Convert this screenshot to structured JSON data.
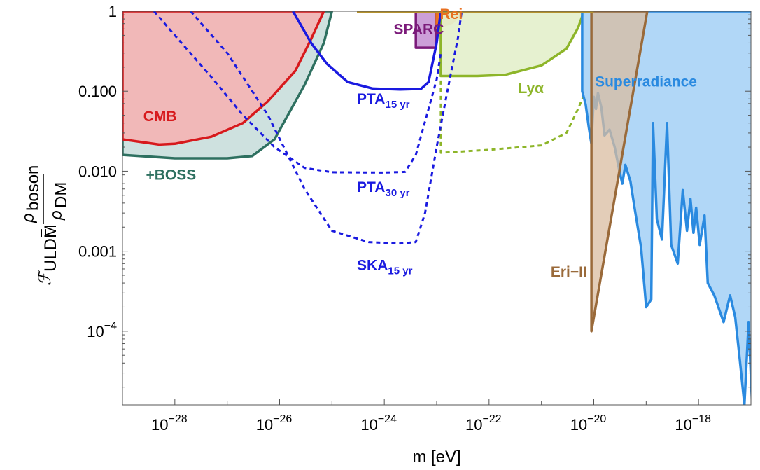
{
  "chart_data": {
    "type": "area",
    "xlabel": "m [eV]",
    "ylabel": {
      "prefix": "ℱ",
      "prefix_sub": "ULDM",
      "equals": "=",
      "num": "ρ",
      "num_sub": "boson",
      "den": "ρ",
      "den_sub": "DM"
    },
    "x_scale": "log",
    "y_scale": "log",
    "xlim": [
      1e-29,
      1e-17
    ],
    "ylim": [
      1.2e-05,
      1
    ],
    "x_ticks": [
      {
        "base": "10",
        "exp": "−28",
        "value": 1e-28
      },
      {
        "base": "10",
        "exp": "−26",
        "value": 1e-26
      },
      {
        "base": "10",
        "exp": "−24",
        "value": 1e-24
      },
      {
        "base": "10",
        "exp": "−22",
        "value": 1e-22
      },
      {
        "base": "10",
        "exp": "−20",
        "value": 1e-20
      },
      {
        "base": "10",
        "exp": "−18",
        "value": 1e-18
      }
    ],
    "y_ticks": [
      {
        "text": "1",
        "value": 1
      },
      {
        "text": "0.100",
        "value": 0.1
      },
      {
        "text": "0.010",
        "value": 0.01
      },
      {
        "text": "0.001",
        "value": 0.001
      },
      {
        "base": "10",
        "exp": "−4",
        "value": 0.0001
      }
    ],
    "regions": [
      {
        "name": "+BOSS",
        "color": "#2e7060",
        "fill": "#c9dedb",
        "fill_opacity": 0.9,
        "style": "solid",
        "label": {
          "text": "+BOSS",
          "x": 2.8e-29,
          "y": 0.0078
        },
        "points": [
          [
            1e-29,
            0.016
          ],
          [
            1e-28,
            0.0145
          ],
          [
            1e-27,
            0.0145
          ],
          [
            3e-27,
            0.0155
          ],
          [
            8e-27,
            0.025
          ],
          [
            3e-26,
            0.12
          ],
          [
            7e-26,
            0.4
          ],
          [
            1e-25,
            1
          ],
          [
            1e-29,
            1
          ]
        ]
      },
      {
        "name": "CMB",
        "color": "#d7191c",
        "fill": "#f2b5b5",
        "fill_opacity": 0.95,
        "style": "solid",
        "label": {
          "text": "CMB",
          "x": 2.5e-29,
          "y": 0.042
        },
        "points": [
          [
            1e-29,
            0.025
          ],
          [
            5e-29,
            0.0215
          ],
          [
            1e-28,
            0.022
          ],
          [
            5e-28,
            0.027
          ],
          [
            2e-27,
            0.04
          ],
          [
            6e-27,
            0.075
          ],
          [
            2e-26,
            0.18
          ],
          [
            4e-26,
            0.45
          ],
          [
            7e-26,
            1
          ],
          [
            1e-29,
            1
          ]
        ]
      },
      {
        "name": "SPARC",
        "color": "#7b1a7a",
        "fill": "#c99ad6",
        "fill_opacity": 0.95,
        "style": "solid",
        "label": {
          "text": "SPARC",
          "x": 1.5e-24,
          "y": 0.52
        },
        "points": [
          [
            4e-24,
            0.35
          ],
          [
            9.8e-24,
            0.35
          ],
          [
            9.8e-24,
            1
          ],
          [
            4e-24,
            1
          ]
        ]
      },
      {
        "name": "Rei",
        "color": "#e87020",
        "fill": "#f07a28",
        "fill_opacity": 1,
        "style": "solid",
        "label": {
          "text": "Rei",
          "x": 1.15e-23,
          "y": 0.8
        },
        "points": [
          [
            1e-23,
            0.62
          ],
          [
            2e-23,
            0.72
          ],
          [
            3.2e-23,
            1
          ],
          [
            1e-23,
            1
          ]
        ]
      },
      {
        "name": "Lyα",
        "color": "#8db529",
        "fill": "#e5f0cd",
        "fill_opacity": 0.95,
        "style": "solid",
        "label": {
          "text": "Lyα",
          "x": 3.6e-22,
          "y": 0.095
        },
        "points": [
          [
            1.2e-23,
            0.155
          ],
          [
            6e-23,
            0.155
          ],
          [
            2e-22,
            0.16
          ],
          [
            1e-21,
            0.21
          ],
          [
            3e-21,
            0.34
          ],
          [
            5e-21,
            0.62
          ],
          [
            6.5e-21,
            1
          ],
          [
            1.2e-23,
            1
          ]
        ]
      },
      {
        "name": "Lyα projection",
        "color": "#8db529",
        "style": "dashed",
        "points": [
          [
            1.2e-23,
            0.17
          ],
          [
            1.2e-23,
            0.017
          ],
          [
            1e-22,
            0.0185
          ],
          [
            1e-21,
            0.021
          ],
          [
            3e-21,
            0.03
          ],
          [
            5e-21,
            0.06
          ],
          [
            6.5e-21,
            0.09
          ]
        ]
      },
      {
        "name": "Superradiance",
        "color": "#2a8ae0",
        "fill": "#a9d3f6",
        "fill_opacity": 0.9,
        "style": "solid",
        "label": {
          "text": "Superradiance",
          "x": 1.05e-20,
          "y": 0.115
        },
        "points": [
          [
            6e-21,
            1
          ],
          [
            6e-21,
            0.1
          ],
          [
            7e-21,
            0.068
          ],
          [
            8e-21,
            0.036
          ],
          [
            9e-21,
            0.022
          ],
          [
            1e-20,
            0.085
          ],
          [
            1.1e-20,
            0.06
          ],
          [
            1.2e-20,
            0.095
          ],
          [
            1.4e-20,
            0.062
          ],
          [
            1.6e-20,
            0.028
          ],
          [
            2e-20,
            0.033
          ],
          [
            2.5e-20,
            0.02
          ],
          [
            3e-20,
            0.011
          ],
          [
            3.5e-20,
            0.007
          ],
          [
            4e-20,
            0.012
          ],
          [
            5e-20,
            0.0075
          ],
          [
            6e-20,
            0.0035
          ],
          [
            8e-20,
            0.0011
          ],
          [
            1e-19,
            0.0002
          ],
          [
            1.25e-19,
            0.00025
          ],
          [
            1.35e-19,
            0.04
          ],
          [
            1.6e-19,
            0.0025
          ],
          [
            2e-19,
            0.0014
          ],
          [
            2.5e-19,
            0.04
          ],
          [
            3e-19,
            0.0012
          ],
          [
            4e-19,
            0.0007
          ],
          [
            5e-19,
            0.0058
          ],
          [
            6e-19,
            0.0018
          ],
          [
            7e-19,
            0.0045
          ],
          [
            8e-19,
            0.0017
          ],
          [
            9e-19,
            0.0035
          ],
          [
            1.05e-18,
            0.0012
          ],
          [
            1.3e-18,
            0.0028
          ],
          [
            1.5e-18,
            0.0004
          ],
          [
            2e-18,
            0.00028
          ],
          [
            3e-18,
            0.00013
          ],
          [
            4e-18,
            0.00028
          ],
          [
            5e-18,
            0.00015
          ],
          [
            6e-18,
            5e-05
          ],
          [
            7.5e-18,
            1.2e-05
          ],
          [
            9e-18,
            0.00013
          ],
          [
            1.05e-17,
            1.2e-05
          ],
          [
            1.1e-17,
            1
          ],
          [
            6e-21,
            1
          ]
        ]
      },
      {
        "name": "Eri-II",
        "color": "#9a6a3a",
        "fill": "#d9bca0",
        "fill_opacity": 0.75,
        "style": "solid",
        "label": {
          "text": "Eri−II",
          "x": 1.5e-21,
          "y": 0.00048
        },
        "points": [
          [
            9e-21,
            0.0001
          ],
          [
            9e-21,
            1
          ],
          [
            1.05e-19,
            1
          ]
        ]
      },
      {
        "name": "PTA 15 yr",
        "color": "#1a1ae0",
        "style": "solid",
        "label": {
          "text": "PTA",
          "sub": "15 yr",
          "x": 3e-25,
          "y": 0.07
        },
        "points": [
          [
            1.8e-26,
            1
          ],
          [
            4e-26,
            0.4
          ],
          [
            8e-26,
            0.22
          ],
          [
            2e-25,
            0.13
          ],
          [
            6e-25,
            0.108
          ],
          [
            2e-24,
            0.105
          ],
          [
            5e-24,
            0.107
          ],
          [
            7e-24,
            0.13
          ],
          [
            1e-23,
            0.4
          ],
          [
            1.2e-23,
            1
          ]
        ]
      },
      {
        "name": "PTA 30 yr",
        "color": "#1a1ae0",
        "style": "dashed",
        "label": {
          "text": "PTA",
          "sub": "30 yr",
          "x": 3e-25,
          "y": 0.0055
        },
        "points": [
          [
            4e-29,
            1
          ],
          [
            1e-28,
            0.5
          ],
          [
            5e-28,
            0.15
          ],
          [
            2e-27,
            0.05
          ],
          [
            8e-27,
            0.02
          ],
          [
            3e-26,
            0.011
          ],
          [
            1e-25,
            0.0097
          ],
          [
            1e-24,
            0.0096
          ],
          [
            2.5e-24,
            0.0098
          ],
          [
            4e-24,
            0.016
          ],
          [
            7e-24,
            0.06
          ],
          [
            1e-23,
            0.14
          ],
          [
            1.2e-23,
            0.3
          ]
        ]
      },
      {
        "name": "SKA 15 yr",
        "color": "#1a1ae0",
        "style": "dashed",
        "label": {
          "text": "SKA",
          "sub": "15 yr",
          "x": 3e-25,
          "y": 0.00058
        },
        "points": [
          [
            2e-28,
            1
          ],
          [
            1e-27,
            0.3
          ],
          [
            6e-27,
            0.05
          ],
          [
            3e-26,
            0.006
          ],
          [
            1e-25,
            0.0018
          ],
          [
            5e-25,
            0.0013
          ],
          [
            2e-24,
            0.00125
          ],
          [
            4e-24,
            0.0013
          ],
          [
            6e-24,
            0.003
          ],
          [
            1e-23,
            0.02
          ],
          [
            1.6e-23,
            0.1
          ],
          [
            2.6e-23,
            0.5
          ],
          [
            3e-23,
            1
          ]
        ]
      },
      {
        "name": "top boundary",
        "color": "#b5922e",
        "style": "solid",
        "points": [
          [
            3e-25,
            0.995
          ],
          [
            1e-20,
            0.995
          ]
        ]
      }
    ]
  }
}
